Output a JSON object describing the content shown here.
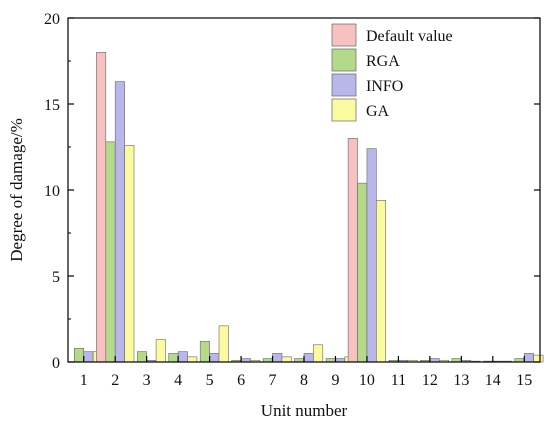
{
  "chart_data": {
    "type": "bar",
    "title": "",
    "xlabel": "Unit number",
    "ylabel": "Degree of damage/%",
    "ylim": [
      0,
      20
    ],
    "yticks": [
      0,
      5,
      10,
      15,
      20
    ],
    "grid": false,
    "legend_position": "top-right",
    "categories": [
      "1",
      "2",
      "3",
      "4",
      "5",
      "6",
      "7",
      "8",
      "9",
      "10",
      "11",
      "12",
      "13",
      "14",
      "15"
    ],
    "series": [
      {
        "name": "Default value",
        "color": "#f6c1c1",
        "values": [
          0,
          18.0,
          0,
          0,
          0,
          0,
          0,
          0,
          0,
          13.0,
          0,
          0,
          0,
          0,
          0
        ]
      },
      {
        "name": "RGA",
        "color": "#b5d98a",
        "values": [
          0.8,
          12.8,
          0.6,
          0.5,
          1.2,
          0.1,
          0.2,
          0.2,
          0.2,
          10.4,
          0.1,
          0.1,
          0.2,
          0.05,
          0.2
        ]
      },
      {
        "name": "INFO",
        "color": "#b9b7ea",
        "values": [
          0.6,
          16.3,
          0.1,
          0.6,
          0.5,
          0.2,
          0.5,
          0.5,
          0.2,
          12.4,
          0.1,
          0.2,
          0.1,
          0.05,
          0.5
        ]
      },
      {
        "name": "GA",
        "color": "#fafaa0",
        "values": [
          0.6,
          12.6,
          1.3,
          0.3,
          2.1,
          0.1,
          0.3,
          1.0,
          0.3,
          9.4,
          0.1,
          0.1,
          0.05,
          0.05,
          0.4
        ]
      }
    ]
  }
}
